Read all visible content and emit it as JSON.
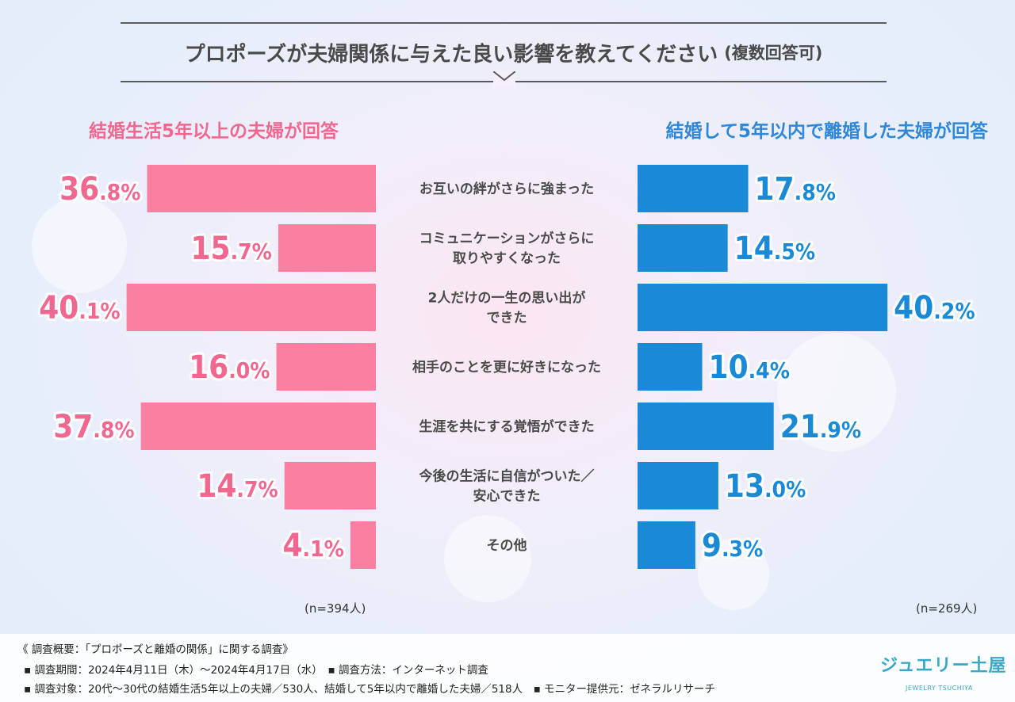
{
  "title": "プロポーズが夫婦関係に与えた良い影響を教えてください",
  "title_note": "(複数回答可)",
  "chart_data": {
    "type": "bar",
    "orientation": "horizontal-butterfly",
    "categories": [
      [
        "お互いの絆がさらに強まった"
      ],
      [
        "コミュニケーションがさらに",
        "取りやすくなった"
      ],
      [
        "2人だけの一生の思い出が",
        "できた"
      ],
      [
        "相手のことを更に好きになった"
      ],
      [
        "生涯を共にする覚悟ができた"
      ],
      [
        "今後の生活に自信がついた／",
        "安心できた"
      ],
      [
        "その他"
      ]
    ],
    "series": [
      {
        "name": "結婚生活5年以上の夫婦が回答",
        "side": "left",
        "color": "#fa7fa0",
        "label_color": "#f0678f",
        "values": [
          36.8,
          15.7,
          40.1,
          16.0,
          37.8,
          14.7,
          4.1
        ],
        "labels": [
          [
            "36",
            ".8%"
          ],
          [
            "15",
            ".7%"
          ],
          [
            "40",
            ".1%"
          ],
          [
            "16",
            ".0%"
          ],
          [
            "37",
            ".8%"
          ],
          [
            "14",
            ".7%"
          ],
          [
            "4",
            ".1%"
          ]
        ],
        "n": "(n=394人)"
      },
      {
        "name": "結婚して5年以内で離婚した夫婦が回答",
        "side": "right",
        "color": "#1a8ad6",
        "label_color": "#1a8ad6",
        "values": [
          17.8,
          14.5,
          40.2,
          10.4,
          21.9,
          13.0,
          9.3
        ],
        "labels": [
          [
            "17",
            ".8%"
          ],
          [
            "14",
            ".5%"
          ],
          [
            "40",
            ".2%"
          ],
          [
            "10",
            ".4%"
          ],
          [
            "21",
            ".9%"
          ],
          [
            "13",
            ".0%"
          ],
          [
            "9",
            ".3%"
          ]
        ],
        "n": "(n=269人)"
      }
    ]
  },
  "footer": {
    "line1": "《 調査概要：「プロポーズと離婚の関係」に関する調査》",
    "line2": "▪ 調査期間：2024年4月11日（木）～2024年4月17日（水）　▪ 調査方法：インターネット調査",
    "line3": "▪ 調査対象：20代～30代の結婚生活5年以上の夫婦／530人、結婚して5年以内で離婚した夫婦／518人　▪ モニター提供元：ゼネラルリサーチ"
  },
  "logo": {
    "text": "ジュエリー土屋",
    "sub": "JEWELRY TSUCHIYA"
  }
}
